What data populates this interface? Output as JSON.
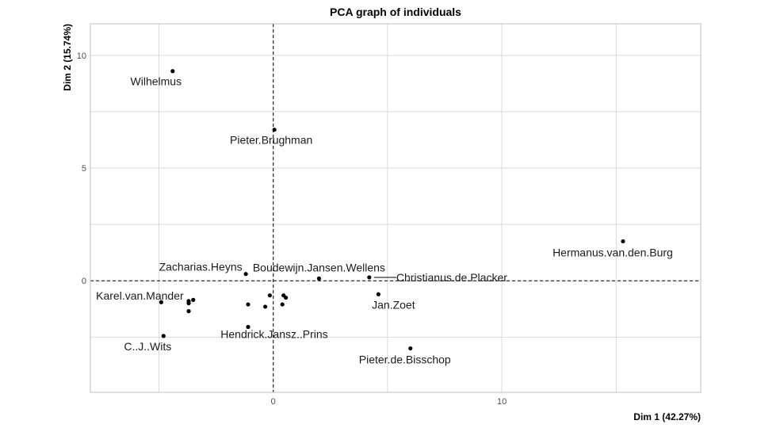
{
  "chart_data": {
    "type": "scatter",
    "title": "PCA graph of individuals",
    "xlabel": "Dim 1 (42.27%)",
    "ylabel": "Dim 2 (15.74%)",
    "xlim": [
      -8,
      18.7
    ],
    "ylim": [
      -4.95,
      11.4
    ],
    "xticks": [
      0,
      10
    ],
    "yticks": [
      0,
      5,
      10
    ],
    "grid": true,
    "reference_lines": {
      "x": 0,
      "y": 0,
      "style": "dashed"
    },
    "points": [
      {
        "x": -4.4,
        "y": 9.3,
        "label": "Wilhelmus"
      },
      {
        "x": 0.05,
        "y": 6.7,
        "label": "Pieter.Brughman"
      },
      {
        "x": 15.3,
        "y": 1.75,
        "label": "Hermanus.van.den.Burg"
      },
      {
        "x": -1.2,
        "y": 0.3,
        "label": "Zacharias.Heyns"
      },
      {
        "x": 2.0,
        "y": 0.1,
        "label": "Boudewijn.Jansen.Wellens"
      },
      {
        "x": 4.2,
        "y": 0.15,
        "label": "Christianus.de.Placker"
      },
      {
        "x": 4.6,
        "y": -0.6,
        "label": "Jan.Zoet"
      },
      {
        "x": -4.9,
        "y": -0.95,
        "label": "Karel.van.Mander"
      },
      {
        "x": -1.1,
        "y": -2.05,
        "label": "Hendrick.Jansz..Prins"
      },
      {
        "x": -4.8,
        "y": -2.45,
        "label": "C..J..Wits"
      },
      {
        "x": 6.0,
        "y": -3.0,
        "label": "Pieter.de.Bisschop"
      },
      {
        "x": -3.7,
        "y": -0.9,
        "label": ""
      },
      {
        "x": -3.7,
        "y": -1.0,
        "label": ""
      },
      {
        "x": -3.5,
        "y": -0.85,
        "label": ""
      },
      {
        "x": -3.7,
        "y": -1.35,
        "label": ""
      },
      {
        "x": -1.1,
        "y": -1.05,
        "label": ""
      },
      {
        "x": -0.35,
        "y": -1.15,
        "label": ""
      },
      {
        "x": -0.15,
        "y": -0.65,
        "label": ""
      },
      {
        "x": 0.45,
        "y": -0.65,
        "label": ""
      },
      {
        "x": 0.55,
        "y": -0.75,
        "label": ""
      },
      {
        "x": 0.4,
        "y": -1.05,
        "label": ""
      }
    ]
  }
}
